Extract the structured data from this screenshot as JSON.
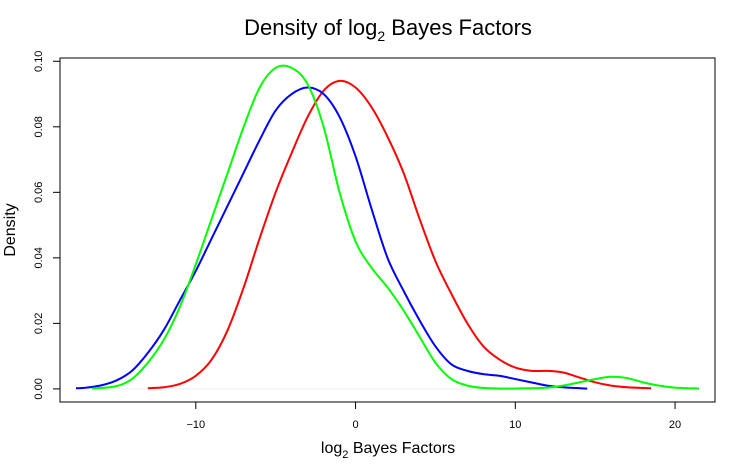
{
  "chart_data": {
    "type": "line",
    "title": {
      "prefix": "Density of log",
      "sub": "2",
      "suffix": " Bayes Factors"
    },
    "xlabel": {
      "prefix": "log",
      "sub": "2",
      "suffix": " Bayes Factors"
    },
    "ylabel": "Density",
    "xlim": [
      -18.5,
      22.5
    ],
    "ylim": [
      -0.004,
      0.101
    ],
    "x_ticks": [
      -10,
      0,
      10,
      20
    ],
    "x_tick_labels": [
      "−10",
      "0",
      "10",
      "20"
    ],
    "y_ticks": [
      0.0,
      0.02,
      0.04,
      0.06,
      0.08,
      0.1
    ],
    "y_tick_labels": [
      "0.00",
      "0.02",
      "0.04",
      "0.06",
      "0.08",
      "0.10"
    ],
    "grid": false,
    "baseline": 0,
    "baseline_color": "#eeeeee",
    "series": [
      {
        "color": "#ff0000",
        "x": [
          -13,
          -12,
          -11,
          -10,
          -9,
          -8,
          -7,
          -6,
          -5,
          -4,
          -3,
          -2,
          -1,
          0,
          1,
          2,
          3,
          4,
          5,
          6,
          7,
          8,
          9,
          10,
          11,
          12,
          13,
          14,
          15,
          16,
          17,
          18.5
        ],
        "y": [
          0.0002,
          0.0005,
          0.0015,
          0.004,
          0.009,
          0.018,
          0.031,
          0.046,
          0.06,
          0.072,
          0.083,
          0.091,
          0.094,
          0.092,
          0.086,
          0.077,
          0.066,
          0.052,
          0.039,
          0.029,
          0.02,
          0.013,
          0.009,
          0.0065,
          0.0055,
          0.0055,
          0.005,
          0.0035,
          0.002,
          0.001,
          0.0005,
          0.0002
        ]
      },
      {
        "color": "#0000ff",
        "x": [
          -17.5,
          -17,
          -16,
          -15,
          -14,
          -13,
          -12,
          -11,
          -10,
          -9,
          -8,
          -7,
          -6,
          -5,
          -4,
          -3,
          -2,
          -1,
          0,
          1,
          2,
          3,
          4,
          5,
          6,
          7,
          8,
          9,
          10,
          11,
          12,
          13,
          14.5
        ],
        "y": [
          0.0002,
          0.0003,
          0.001,
          0.0025,
          0.0055,
          0.011,
          0.018,
          0.027,
          0.036,
          0.046,
          0.056,
          0.066,
          0.076,
          0.085,
          0.09,
          0.092,
          0.09,
          0.083,
          0.071,
          0.055,
          0.04,
          0.03,
          0.021,
          0.013,
          0.0075,
          0.0055,
          0.0045,
          0.004,
          0.003,
          0.002,
          0.001,
          0.0005,
          0.0001
        ]
      },
      {
        "color": "#00ff00",
        "x": [
          -16.5,
          -15,
          -14,
          -13,
          -12,
          -11,
          -10,
          -9,
          -8,
          -7,
          -6,
          -5,
          -4,
          -3,
          -2,
          -1,
          0,
          1,
          2,
          3,
          4,
          5,
          6,
          7,
          8,
          9,
          10,
          11,
          12,
          13,
          14,
          15,
          16,
          17,
          18,
          19,
          20,
          21.5
        ],
        "y": [
          0.0001,
          0.0008,
          0.003,
          0.008,
          0.015,
          0.025,
          0.038,
          0.052,
          0.066,
          0.08,
          0.092,
          0.098,
          0.098,
          0.093,
          0.08,
          0.06,
          0.045,
          0.037,
          0.031,
          0.024,
          0.016,
          0.008,
          0.003,
          0.001,
          0.0003,
          0.0001,
          0.0001,
          0.0002,
          0.0004,
          0.001,
          0.002,
          0.003,
          0.0037,
          0.0033,
          0.002,
          0.001,
          0.0004,
          0.0001
        ]
      }
    ]
  }
}
